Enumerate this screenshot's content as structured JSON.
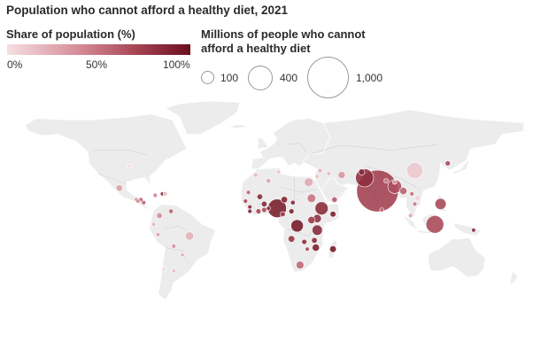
{
  "title": "Population who cannot afford a healthy diet, 2021",
  "color_legend": {
    "title": "Share of population (%)",
    "ticks": [
      "0%",
      "50%",
      "100%"
    ],
    "colors": [
      "#f5dfe2",
      "#d48a95",
      "#a84555",
      "#6a0f1d"
    ]
  },
  "size_legend": {
    "title": "Millions of people who cannot afford a healthy diet",
    "entries": [
      {
        "label": "100",
        "value": 100
      },
      {
        "label": "400",
        "value": 400
      },
      {
        "label": "1,000",
        "value": 1000
      }
    ]
  },
  "colors": {
    "land": "#ececec",
    "border": "#ffffff",
    "bubble_stroke": "#ffffff"
  },
  "bubbles": [
    {
      "lon": 78,
      "lat": 21,
      "millions": 1000,
      "share": 74
    },
    {
      "lon": 69,
      "lat": 30,
      "millions": 190,
      "share": 83
    },
    {
      "lon": 90,
      "lat": 24,
      "millions": 110,
      "share": 66
    },
    {
      "lon": 104,
      "lat": 35,
      "millions": 150,
      "share": 11
    },
    {
      "lon": 118,
      "lat": -2,
      "millions": 180,
      "share": 69
    },
    {
      "lon": 122,
      "lat": 12,
      "millions": 72,
      "share": 69
    },
    {
      "lon": 96,
      "lat": 21,
      "millions": 30,
      "share": 59
    },
    {
      "lon": 106,
      "lat": 16,
      "millions": 20,
      "share": 5
    },
    {
      "lon": 8,
      "lat": 9,
      "millions": 200,
      "share": 93
    },
    {
      "lon": 39,
      "lat": 9,
      "millions": 100,
      "share": 86
    },
    {
      "lon": 22,
      "lat": -3,
      "millions": 90,
      "share": 95
    },
    {
      "lon": 36,
      "lat": -6,
      "millions": 60,
      "share": 87
    },
    {
      "lon": 32,
      "lat": 16,
      "millions": 42,
      "share": 50
    },
    {
      "lon": 30,
      "lat": 27,
      "millions": 45,
      "share": 26
    },
    {
      "lon": 36,
      "lat": 2,
      "millions": 40,
      "share": 82
    },
    {
      "lon": 32,
      "lat": 1,
      "millions": 30,
      "share": 78
    },
    {
      "lon": 47,
      "lat": 5,
      "millions": 20,
      "share": 94
    },
    {
      "lon": 47,
      "lat": -19,
      "millions": 25,
      "share": 96
    },
    {
      "lon": 24,
      "lat": -30,
      "millions": 35,
      "share": 55
    },
    {
      "lon": 35,
      "lat": -18,
      "millions": 30,
      "share": 93
    },
    {
      "lon": 18,
      "lat": -12,
      "millions": 26,
      "share": 80
    },
    {
      "lon": 27,
      "lat": -14,
      "millions": 15,
      "share": 85
    },
    {
      "lon": 34,
      "lat": -13,
      "millions": 18,
      "share": 88
    },
    {
      "lon": 29,
      "lat": -19,
      "millions": 10,
      "share": 70
    },
    {
      "lon": 13,
      "lat": 15,
      "millions": 25,
      "share": 90
    },
    {
      "lon": -1,
      "lat": 12,
      "millions": 18,
      "share": 88
    },
    {
      "lon": -4,
      "lat": 17,
      "millions": 18,
      "share": 86
    },
    {
      "lon": -1,
      "lat": 8,
      "millions": 15,
      "share": 70
    },
    {
      "lon": -5,
      "lat": 7,
      "millions": 15,
      "share": 72
    },
    {
      "lon": 18,
      "lat": 7,
      "millions": 15,
      "share": 93
    },
    {
      "lon": 12,
      "lat": 5,
      "millions": 15,
      "share": 75
    },
    {
      "lon": 19,
      "lat": 13,
      "millions": 12,
      "share": 90
    },
    {
      "lon": -11,
      "lat": 10,
      "millions": 10,
      "share": 88
    },
    {
      "lon": -14,
      "lat": 14,
      "millions": 8,
      "share": 70
    },
    {
      "lon": 2,
      "lat": 9,
      "millions": 8,
      "share": 85
    },
    {
      "lon": -11,
      "lat": 7,
      "millions": 5,
      "share": 90
    },
    {
      "lon": -12,
      "lat": 20,
      "millions": 3,
      "share": 60
    },
    {
      "lon": 2,
      "lat": 28,
      "millions": 12,
      "share": 30
    },
    {
      "lon": -7,
      "lat": 32,
      "millions": 8,
      "share": 20
    },
    {
      "lon": 9,
      "lat": 34,
      "millions": 3,
      "share": 15
    },
    {
      "lon": 44,
      "lat": 33,
      "millions": 8,
      "share": 18
    },
    {
      "lon": 53,
      "lat": 32,
      "millions": 30,
      "share": 35
    },
    {
      "lon": 48,
      "lat": 15,
      "millions": 18,
      "share": 61
    },
    {
      "lon": 38,
      "lat": 35,
      "millions": 6,
      "share": 25
    },
    {
      "lon": 36,
      "lat": 31,
      "millions": 2,
      "share": 15
    },
    {
      "lon": 67,
      "lat": 34,
      "millions": 22,
      "share": 85
    },
    {
      "lon": 84,
      "lat": 28,
      "millions": 12,
      "share": 44
    },
    {
      "lon": 81,
      "lat": 8,
      "millions": 8,
      "share": 55
    },
    {
      "lon": 90,
      "lat": 27,
      "millions": 2,
      "share": 30
    },
    {
      "lon": 104,
      "lat": 12,
      "millions": 8,
      "share": 50
    },
    {
      "lon": 102,
      "lat": 19,
      "millions": 5,
      "share": 55
    },
    {
      "lon": 101,
      "lat": 4,
      "millions": 4,
      "share": 30
    },
    {
      "lon": 127,
      "lat": 40,
      "millions": 15,
      "share": 70
    },
    {
      "lon": 145,
      "lat": -6,
      "millions": 10,
      "share": 85
    },
    {
      "lon": -72,
      "lat": 19,
      "millions": 9,
      "share": 85
    },
    {
      "lon": -70,
      "lat": 19,
      "millions": 3,
      "share": 20
    },
    {
      "lon": -77,
      "lat": 18,
      "millions": 2,
      "share": 45
    },
    {
      "lon": -90,
      "lat": 15,
      "millions": 5,
      "share": 45
    },
    {
      "lon": -87,
      "lat": 15,
      "millions": 5,
      "share": 60
    },
    {
      "lon": -85,
      "lat": 13,
      "millions": 4,
      "share": 60
    },
    {
      "lon": -89,
      "lat": 14,
      "millions": 2,
      "share": 40
    },
    {
      "lon": -102,
      "lat": 23,
      "millions": 25,
      "share": 30
    },
    {
      "lon": -66,
      "lat": 7,
      "millions": 12,
      "share": 60
    },
    {
      "lon": -74,
      "lat": 4,
      "millions": 18,
      "share": 40
    },
    {
      "lon": -78,
      "lat": -2,
      "millions": 3,
      "share": 20
    },
    {
      "lon": -75,
      "lat": -9,
      "millions": 7,
      "share": 30
    },
    {
      "lon": -53,
      "lat": -10,
      "millions": 40,
      "share": 22
    },
    {
      "lon": -64,
      "lat": -17,
      "millions": 5,
      "share": 40
    },
    {
      "lon": -58,
      "lat": -23,
      "millions": 2,
      "share": 20
    },
    {
      "lon": -64,
      "lat": -34,
      "millions": 6,
      "share": 15
    },
    {
      "lon": -71,
      "lat": -33,
      "millions": 2,
      "share": 3
    },
    {
      "lon": -95,
      "lat": 38,
      "millions": 2,
      "share": 1
    }
  ]
}
